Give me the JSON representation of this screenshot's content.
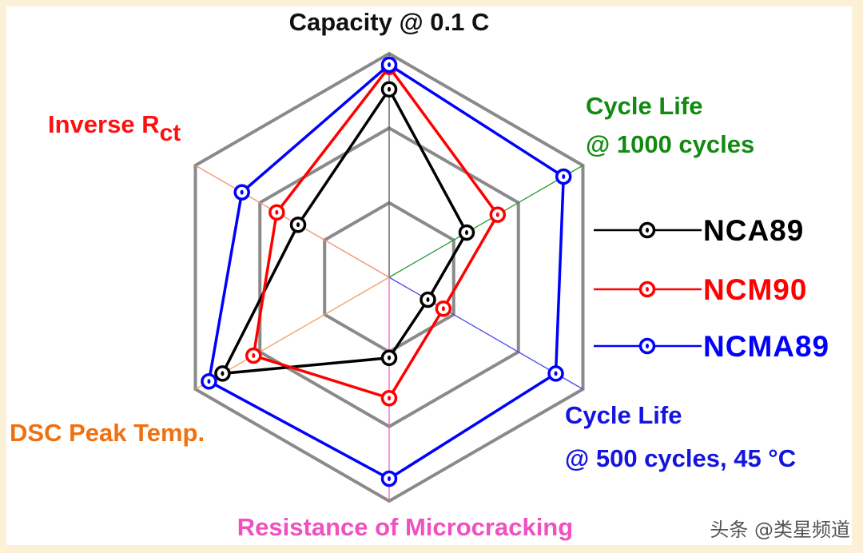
{
  "chart_data": {
    "type": "radar",
    "axes": [
      {
        "lines": [
          "Capacity @ 0.1 C"
        ],
        "color": "#111111",
        "axis_color": "#555555"
      },
      {
        "lines": [
          "Cycle Life",
          "@ 1000 cycles"
        ],
        "color": "#128a12",
        "axis_color": "#2a9a3a"
      },
      {
        "lines": [
          "Cycle Life",
          "@ 500 cycles, 45 °C"
        ],
        "color": "#1414e0",
        "axis_color": "#4a4ae8"
      },
      {
        "lines": [
          "Resistance of Microcracking"
        ],
        "color": "#f050c0",
        "axis_color": "#f060c0"
      },
      {
        "lines": [
          "DSC Peak Temp."
        ],
        "color": "#f07010",
        "axis_color": "#f0a060"
      },
      {
        "lines": [
          "Inverse R",
          "ct"
        ],
        "color": "#ff1010",
        "axis_color": "#f09070"
      }
    ],
    "range": [
      0,
      1
    ],
    "grid_levels": [
      0.333,
      0.667,
      1.0
    ],
    "series": [
      {
        "name": "NCA89",
        "color": "#000000",
        "values": [
          0.84,
          0.4,
          0.2,
          0.36,
          0.86,
          0.47
        ]
      },
      {
        "name": "NCM90",
        "color": "#ff0000",
        "values": [
          0.94,
          0.56,
          0.28,
          0.54,
          0.7,
          0.58
        ]
      },
      {
        "name": "NCMA89",
        "color": "#0000ff",
        "values": [
          0.95,
          0.9,
          0.86,
          0.9,
          0.93,
          0.76
        ]
      }
    ],
    "legend_position": "right"
  },
  "watermark": "头条 @类星频道"
}
